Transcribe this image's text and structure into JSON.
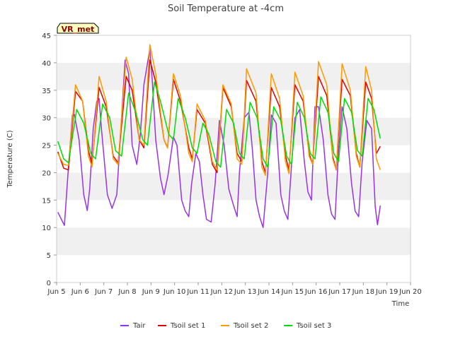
{
  "chart_data": {
    "type": "line",
    "title": "Soil Temperature at -4cm",
    "xlabel": "Time",
    "ylabel": "Temperature (C)",
    "xlim": [
      5,
      20
    ],
    "ylim": [
      0,
      45
    ],
    "x_ticks": [
      5,
      6,
      7,
      8,
      9,
      10,
      11,
      12,
      13,
      14,
      15,
      16,
      17,
      18,
      19,
      20
    ],
    "x_tick_labels": [
      "Jun 5",
      "Jun 6",
      "Jun 7",
      "Jun 8",
      "Jun 9",
      "Jun 10",
      "Jun 11",
      "Jun 12",
      "Jun 13",
      "Jun 14",
      "Jun 15",
      "Jun 16",
      "Jun 17",
      "Jun 18",
      "Jun 19",
      "Jun 20"
    ],
    "y_ticks": [
      0,
      5,
      10,
      15,
      20,
      25,
      30,
      35,
      40,
      45
    ],
    "y_tick_labels": [
      "0",
      "5",
      "10",
      "15",
      "20",
      "25",
      "30",
      "35",
      "40",
      "45"
    ],
    "grid": "horizontal bands",
    "legend_position": "bottom",
    "annotation": "VR_met",
    "series": [
      {
        "name": "Tair",
        "color": "#9933e6",
        "x": [
          5.05,
          5.2,
          5.33,
          5.5,
          5.67,
          5.75,
          5.95,
          6.15,
          6.3,
          6.4,
          6.55,
          6.7,
          6.8,
          6.9,
          7.15,
          7.35,
          7.55,
          7.75,
          7.9,
          8.05,
          8.2,
          8.4,
          8.55,
          8.7,
          8.95,
          9.05,
          9.2,
          9.4,
          9.55,
          9.72,
          9.95,
          10.1,
          10.3,
          10.45,
          10.6,
          10.72,
          10.9,
          11.05,
          11.2,
          11.35,
          11.55,
          11.72,
          11.9,
          12.1,
          12.3,
          12.5,
          12.65,
          12.75,
          12.95,
          13.15,
          13.3,
          13.45,
          13.6,
          13.75,
          13.95,
          14.1,
          14.3,
          14.5,
          14.65,
          14.8,
          14.95,
          15.1,
          15.3,
          15.5,
          15.65,
          15.8,
          15.95,
          16.1,
          16.3,
          16.5,
          16.65,
          16.8,
          16.95,
          17.1,
          17.3,
          17.5,
          17.65,
          17.8,
          17.95,
          18.15,
          18.35,
          18.5,
          18.6,
          18.72
        ],
        "y": [
          12.8,
          11.5,
          10.4,
          21,
          30.5,
          30.6,
          26,
          16,
          13.1,
          17,
          28,
          33,
          33.5,
          28,
          16,
          13.5,
          16,
          30,
          40.5,
          38,
          25,
          21.5,
          27,
          36,
          42.5,
          37,
          26,
          19,
          16,
          19.5,
          26.5,
          25,
          15,
          13,
          12,
          18,
          23.5,
          22,
          16,
          11.5,
          11,
          18,
          29.5,
          25,
          17,
          14,
          12,
          20,
          30,
          31,
          24,
          15,
          12,
          10,
          20,
          30.5,
          29,
          16,
          13,
          11.5,
          21,
          30,
          31.5,
          22,
          16.5,
          15,
          32,
          32,
          26,
          16,
          12.5,
          11.5,
          24,
          32,
          28,
          18,
          13,
          12,
          22,
          29.5,
          28,
          14,
          10.5,
          14
        ]
      },
      {
        "name": "Tsoil set 1",
        "color": "#dd0000",
        "x": [
          5.05,
          5.3,
          5.5,
          5.8,
          6.1,
          6.35,
          6.5,
          6.8,
          7.1,
          7.4,
          7.6,
          7.95,
          8.2,
          8.5,
          8.7,
          8.95,
          9.2,
          9.55,
          9.7,
          9.95,
          10.25,
          10.6,
          10.75,
          10.95,
          11.3,
          11.6,
          11.8,
          12.05,
          12.4,
          12.65,
          12.85,
          13.05,
          13.45,
          13.7,
          13.85,
          14.1,
          14.45,
          14.7,
          14.85,
          15.1,
          15.45,
          15.7,
          15.85,
          16.1,
          16.45,
          16.7,
          16.85,
          17.1,
          17.45,
          17.7,
          17.85,
          18.1,
          18.35,
          18.55,
          18.72
        ],
        "y": [
          23.8,
          20.8,
          20.5,
          34.8,
          33.0,
          24.0,
          21.5,
          35.5,
          32.0,
          23.0,
          21.8,
          37.5,
          35.0,
          26.0,
          24.5,
          40.5,
          36.5,
          26.0,
          24.5,
          37.0,
          33.0,
          24.5,
          22.5,
          31.5,
          29.0,
          21.5,
          20.0,
          35.5,
          32.0,
          23.5,
          22.0,
          36.8,
          33.0,
          22.0,
          20.0,
          35.5,
          32.0,
          23.0,
          20.5,
          36.0,
          33.0,
          23.5,
          21.5,
          37.5,
          34.0,
          23.0,
          20.5,
          37.0,
          34.0,
          23.5,
          21.0,
          36.5,
          33.5,
          23.5,
          24.8
        ]
      },
      {
        "name": "Tsoil set 2",
        "color": "#ff9900",
        "x": [
          5.05,
          5.3,
          5.5,
          5.8,
          6.1,
          6.35,
          6.5,
          6.8,
          7.1,
          7.4,
          7.6,
          7.95,
          8.2,
          8.5,
          8.7,
          8.95,
          9.2,
          9.55,
          9.7,
          9.95,
          10.25,
          10.6,
          10.75,
          10.95,
          11.3,
          11.6,
          11.8,
          12.05,
          12.4,
          12.65,
          12.85,
          13.05,
          13.45,
          13.7,
          13.85,
          14.1,
          14.45,
          14.7,
          14.85,
          15.1,
          15.45,
          15.7,
          15.85,
          16.1,
          16.45,
          16.7,
          16.85,
          17.1,
          17.45,
          17.7,
          17.85,
          18.1,
          18.35,
          18.55,
          18.72
        ],
        "y": [
          23.5,
          21.5,
          21.3,
          36.0,
          33.0,
          23.0,
          21.0,
          37.5,
          33.0,
          22.5,
          21.5,
          41.0,
          37.0,
          26.0,
          25.0,
          43.3,
          38.0,
          26.0,
          24.5,
          38.0,
          34.0,
          23.5,
          22.0,
          32.5,
          29.5,
          22.0,
          20.5,
          36.0,
          32.5,
          22.5,
          21.5,
          38.9,
          34.5,
          21.0,
          19.5,
          38.0,
          33.5,
          22.0,
          19.8,
          38.3,
          34.0,
          23.0,
          21.5,
          40.2,
          36.0,
          22.5,
          20.5,
          39.8,
          35.0,
          23.0,
          21.0,
          39.3,
          35.0,
          22.5,
          20.5
        ]
      },
      {
        "name": "Tsoil set 3",
        "color": "#00dd00",
        "x": [
          5.05,
          5.3,
          5.5,
          5.85,
          6.15,
          6.45,
          6.65,
          6.95,
          7.25,
          7.5,
          7.75,
          8.05,
          8.35,
          8.65,
          8.85,
          9.15,
          9.4,
          9.75,
          9.95,
          10.15,
          10.45,
          10.75,
          10.95,
          11.2,
          11.45,
          11.75,
          11.95,
          12.2,
          12.5,
          12.75,
          12.95,
          13.2,
          13.5,
          13.75,
          13.95,
          14.2,
          14.5,
          14.75,
          14.95,
          15.2,
          15.5,
          15.75,
          15.95,
          16.2,
          16.5,
          16.75,
          16.95,
          17.2,
          17.5,
          17.75,
          17.95,
          18.2,
          18.45,
          18.6,
          18.72
        ],
        "y": [
          25.7,
          22.5,
          21.8,
          31.5,
          29.0,
          23.5,
          22.5,
          32.5,
          30.0,
          24.0,
          23.0,
          34.5,
          31.0,
          26.0,
          25.0,
          36.5,
          33.0,
          27.0,
          26.0,
          33.5,
          30.0,
          24.5,
          23.5,
          29.0,
          27.0,
          22.0,
          21.0,
          31.5,
          29.0,
          23.5,
          22.5,
          32.8,
          30.0,
          22.5,
          21.0,
          32.0,
          29.5,
          23.0,
          21.5,
          32.8,
          30.0,
          23.5,
          22.5,
          33.8,
          31.0,
          23.5,
          22.0,
          33.5,
          31.0,
          24.0,
          23.0,
          33.5,
          31.5,
          28.5,
          26.2
        ]
      }
    ]
  }
}
